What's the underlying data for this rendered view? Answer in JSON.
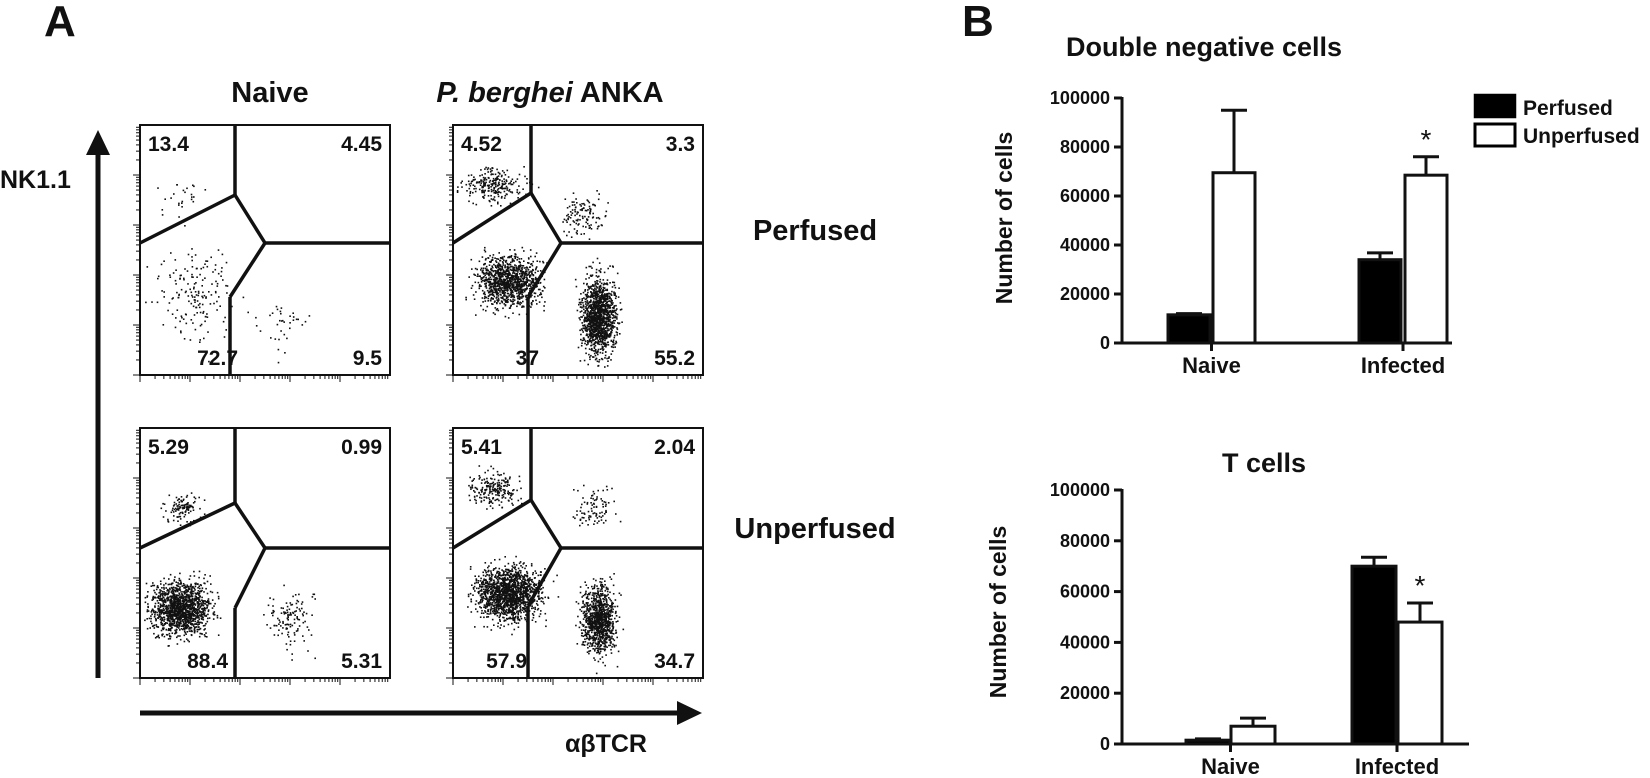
{
  "panel_a": {
    "letter": "A",
    "columns": [
      "Naive",
      "ANKA"
    ],
    "column_italic_prefix": "P. berghei",
    "rows": [
      "Perfused",
      "Unperfused"
    ],
    "y_axis_label": "NK1.1",
    "x_axis_label": "αβTCR",
    "plots": [
      {
        "column": "Naive",
        "row": "Perfused",
        "quadrants": {
          "top_left": "13.4",
          "top_right": "4.45",
          "bottom_left": "72.7",
          "bottom_right": "9.5"
        }
      },
      {
        "column": "P. berghei ANKA",
        "row": "Perfused",
        "quadrants": {
          "top_left": "4.52",
          "top_right": "3.3",
          "bottom_left": "37",
          "bottom_right": "55.2"
        }
      },
      {
        "column": "Naive",
        "row": "Unperfused",
        "quadrants": {
          "top_left": "5.29",
          "top_right": "0.99",
          "bottom_left": "88.4",
          "bottom_right": "5.31"
        }
      },
      {
        "column": "P. berghei ANKA",
        "row": "Unperfused",
        "quadrants": {
          "top_left": "5.41",
          "top_right": "2.04",
          "bottom_left": "57.9",
          "bottom_right": "34.7"
        }
      }
    ]
  },
  "panel_b": {
    "letter": "B",
    "legend": [
      {
        "label": "Perfused",
        "fill": "#000000"
      },
      {
        "label": "Unperfused",
        "fill": "#ffffff"
      }
    ]
  },
  "colors": {
    "ink": "#111111",
    "background": "#ffffff"
  },
  "chart_data": [
    {
      "type": "bar",
      "title": "Double negative cells",
      "xlabel": "",
      "ylabel": "Number of cells",
      "categories": [
        "Naive",
        "Infected"
      ],
      "ylim": [
        0,
        100000
      ],
      "yticks": [
        "0",
        "20000",
        "40000",
        "60000",
        "80000",
        "100000"
      ],
      "series": [
        {
          "name": "Perfused",
          "values": [
            11500,
            34000
          ],
          "errors": [
            500,
            2800
          ]
        },
        {
          "name": "Unperfused",
          "values": [
            69500,
            68500
          ],
          "errors": [
            25500,
            7500
          ]
        }
      ],
      "significance": [
        {
          "category": "Infected",
          "series": "Unperfused",
          "marker": "*"
        }
      ]
    },
    {
      "type": "bar",
      "title": "T cells",
      "xlabel": "",
      "ylabel": "Number of cells",
      "categories": [
        "Naive",
        "Infected"
      ],
      "ylim": [
        0,
        100000
      ],
      "yticks": [
        "0",
        "20000",
        "40000",
        "60000",
        "80000",
        "100000"
      ],
      "series": [
        {
          "name": "Perfused",
          "values": [
            1500,
            70000
          ],
          "errors": [
            500,
            3500
          ]
        },
        {
          "name": "Unperfused",
          "values": [
            7000,
            48000
          ],
          "errors": [
            3200,
            7500
          ]
        }
      ],
      "significance": [
        {
          "category": "Infected",
          "series": "Unperfused",
          "marker": "*"
        }
      ]
    }
  ]
}
